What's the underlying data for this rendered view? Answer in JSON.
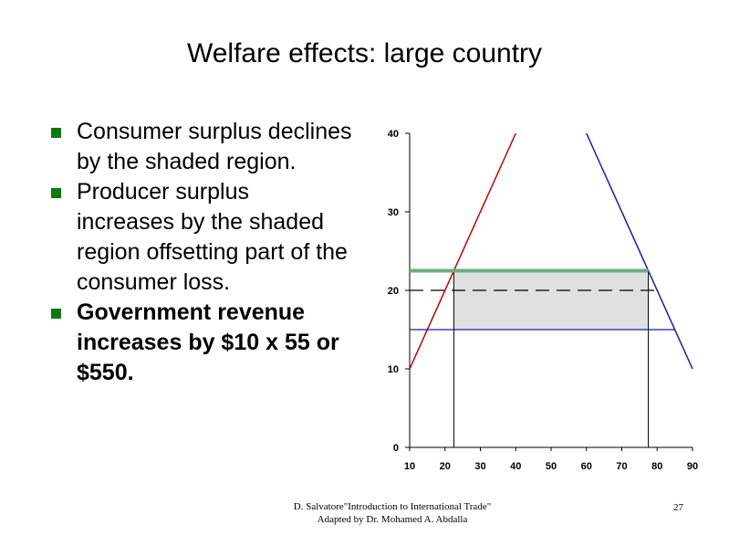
{
  "slide": {
    "title": "Welfare effects: large country",
    "bullets": [
      {
        "text": "Consumer surplus declines by the shaded region.",
        "bold": false
      },
      {
        "text": "Producer surplus increases by the shaded region offsetting part of the consumer loss.",
        "bold": false
      },
      {
        "text": "Government revenue increases by $10 x 55 or $550.",
        "bold": true
      }
    ],
    "footer_line1": "D. Salvatore\"Introduction to International Trade\"",
    "footer_line2": "Adapted by Dr. Mohamed A. Abdalla",
    "page_number": "27"
  },
  "colors": {
    "bullet": "#0a7a0a",
    "supply": "#c00000",
    "demand": "#1a1aa8",
    "tariff_price": "#6fae7f",
    "shade": "#e0e0e0"
  },
  "chart_data": {
    "type": "line",
    "xlim": [
      10,
      90
    ],
    "ylim": [
      0,
      40
    ],
    "x_ticks": [
      "10",
      "20",
      "30",
      "40",
      "50",
      "60",
      "70",
      "80",
      "90"
    ],
    "y_ticks": [
      "0",
      "10",
      "20",
      "30",
      "40"
    ],
    "series": [
      {
        "role": "supply",
        "points": [
          [
            10,
            10
          ],
          [
            40,
            40
          ]
        ]
      },
      {
        "role": "demand",
        "points": [
          [
            60,
            40
          ],
          [
            90,
            10
          ]
        ]
      },
      {
        "role": "tariff-inclusive-price",
        "points": [
          [
            10,
            22.5
          ],
          [
            77.5,
            22.5
          ]
        ]
      },
      {
        "role": "free-trade-price",
        "points": [
          [
            10,
            20
          ],
          [
            80,
            20
          ]
        ],
        "dashed": true
      },
      {
        "role": "world-price-after-tariff",
        "points": [
          [
            10,
            15
          ],
          [
            85,
            15
          ]
        ]
      }
    ],
    "shaded_region": {
      "x": [
        22.5,
        77.5
      ],
      "y": [
        15,
        22.5
      ]
    },
    "verticals": [
      22.5,
      77.5
    ]
  }
}
